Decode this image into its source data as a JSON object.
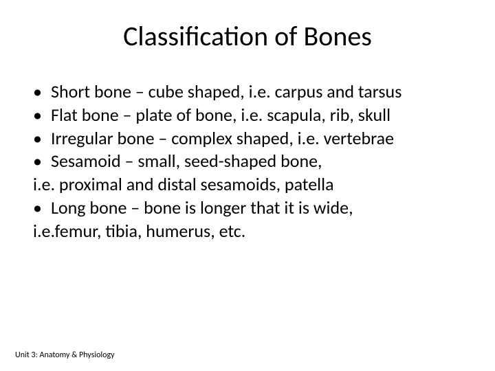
{
  "title": "Classification of Bones",
  "bullets": {
    "b1": "Short bone – cube shaped, i.e. carpus and tarsus",
    "b2": " Flat bone – plate of bone, i.e. scapula, rib, skull",
    "b3": " Irregular bone – complex shaped, i.e. vertebrae",
    "b4": " Sesamoid – small, seed-shaped bone,",
    "c4": " i.e. proximal and distal sesamoids, patella",
    "b5": " Long bone – bone is longer that it is wide,",
    "c5": "i.e.femur, tibia, humerus, etc."
  },
  "footer": "Unit 3: Anatomy & Physiology",
  "colors": {
    "background": "#ffffff",
    "text": "#000000"
  },
  "typography": {
    "title_fontsize": 40,
    "body_fontsize": 26,
    "footer_fontsize": 12,
    "font_family": "Calibri"
  }
}
